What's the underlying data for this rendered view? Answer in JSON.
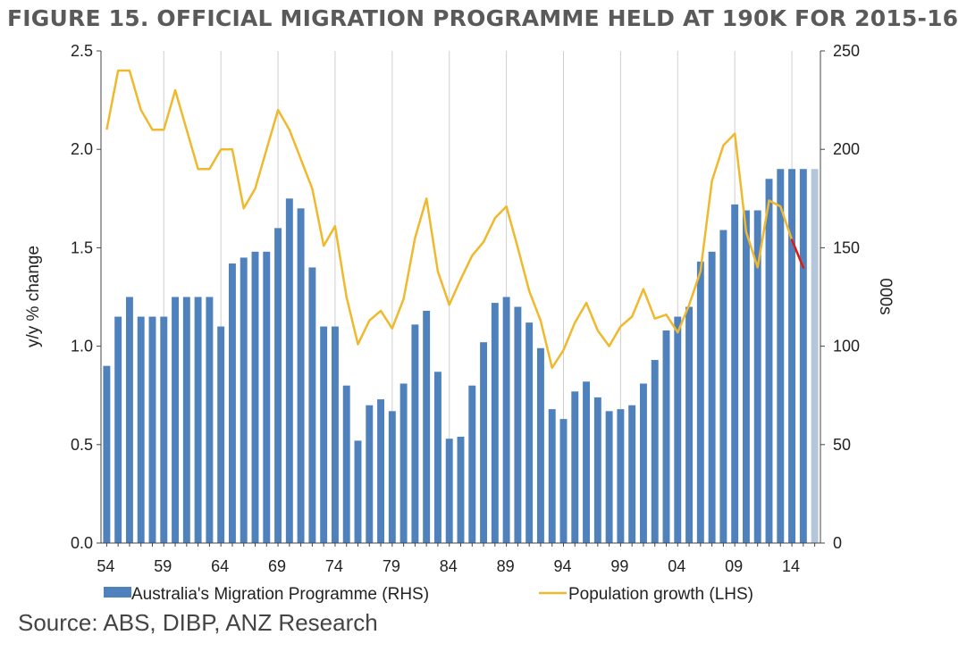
{
  "title": "FIGURE 15. OFFICIAL MIGRATION PROGRAMME HELD AT 190K FOR 2015-16",
  "source": "Source: ABS, DIBP, ANZ Research",
  "chart_data": {
    "type": "bar+line",
    "x": [
      54,
      55,
      56,
      57,
      58,
      59,
      60,
      61,
      62,
      63,
      64,
      65,
      66,
      67,
      68,
      69,
      70,
      71,
      72,
      73,
      74,
      75,
      76,
      77,
      78,
      79,
      80,
      81,
      82,
      83,
      84,
      85,
      86,
      87,
      88,
      89,
      90,
      91,
      92,
      93,
      94,
      95,
      96,
      97,
      98,
      99,
      100,
      101,
      102,
      103,
      104,
      105,
      106,
      107,
      108,
      109,
      110,
      111,
      112,
      113,
      114,
      115,
      116
    ],
    "x_tick_labels": [
      "54",
      "59",
      "64",
      "69",
      "74",
      "79",
      "84",
      "89",
      "94",
      "99",
      "04",
      "09",
      "14"
    ],
    "series": [
      {
        "name": "Australia's Migration Programme (RHS)",
        "type": "bar",
        "axis": "right",
        "color": "#4f81bd",
        "values": [
          90,
          115,
          125,
          115,
          115,
          115,
          125,
          125,
          125,
          125,
          110,
          142,
          145,
          148,
          148,
          160,
          175,
          170,
          140,
          110,
          110,
          80,
          52,
          70,
          73,
          67,
          81,
          111,
          118,
          87,
          53,
          54,
          80,
          102,
          122,
          125,
          120,
          112,
          99,
          68,
          63,
          77,
          82,
          74,
          67,
          68,
          70,
          81,
          93,
          108,
          115,
          120,
          143,
          148,
          159,
          172,
          169,
          169,
          185,
          190,
          190,
          190,
          190
        ]
      },
      {
        "name": "Population growth (LHS)",
        "type": "line",
        "axis": "left",
        "color": "#f0b92d",
        "values": [
          2.1,
          2.4,
          2.4,
          2.2,
          2.1,
          2.1,
          2.3,
          2.1,
          1.9,
          1.9,
          2.0,
          2.0,
          1.7,
          1.8,
          2.0,
          2.2,
          2.1,
          1.95,
          1.8,
          1.51,
          1.61,
          1.25,
          1.01,
          1.13,
          1.18,
          1.09,
          1.24,
          1.55,
          1.75,
          1.38,
          1.21,
          1.34,
          1.46,
          1.53,
          1.65,
          1.71,
          1.5,
          1.28,
          1.13,
          0.89,
          0.98,
          1.12,
          1.22,
          1.08,
          1.0,
          1.1,
          1.15,
          1.29,
          1.14,
          1.16,
          1.07,
          1.21,
          1.38,
          1.84,
          2.02,
          2.08,
          1.58,
          1.4,
          1.74,
          1.71,
          1.54,
          1.4,
          null
        ]
      }
    ],
    "highlight_segment": {
      "from_index": 60,
      "to_index": 61,
      "color": "#d7191c"
    },
    "last_bar_color": "#b4c6dc",
    "xlabel": "",
    "ylabel_left": "y/y % change",
    "ylabel_right": "000s",
    "ylim_left": [
      0,
      2.5
    ],
    "ylim_right": [
      0,
      250
    ],
    "yticks_left": [
      "0.0",
      "0.5",
      "1.0",
      "1.5",
      "2.0",
      "2.5"
    ],
    "yticks_right": [
      "0",
      "50",
      "100",
      "150",
      "200",
      "250"
    ],
    "grid": "vertical",
    "legend_position": "bottom"
  }
}
